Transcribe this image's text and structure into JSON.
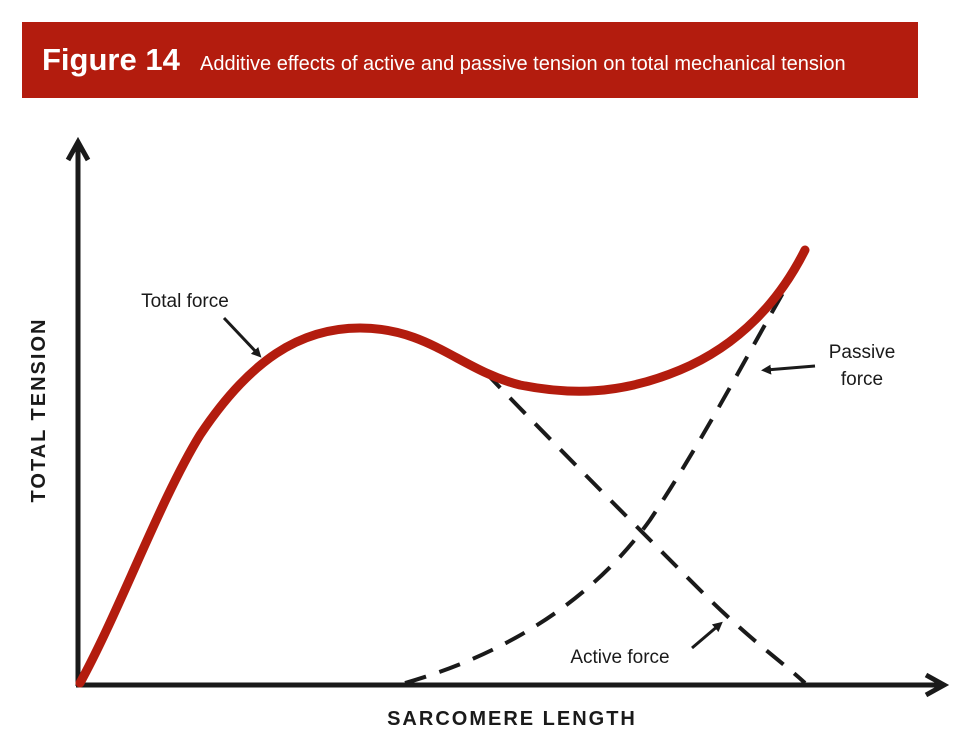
{
  "header": {
    "figure": "Figure 14",
    "title": "Additive effects of active and passive tension on total mechanical tension"
  },
  "axes": {
    "y": "TOTAL TENSION",
    "x": "SARCOMERE LENGTH"
  },
  "labels": {
    "total": "Total force",
    "passive": [
      "Passive",
      "force"
    ],
    "active": "Active force"
  }
}
